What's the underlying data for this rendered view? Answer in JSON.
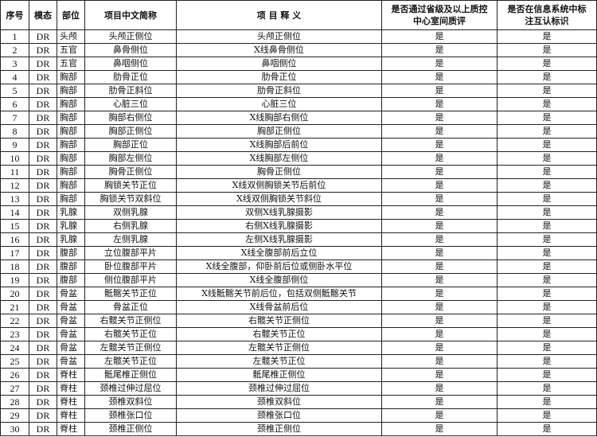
{
  "headers": [
    "序号",
    "模态",
    "部位",
    "项目中文简称",
    "项 目 释 义",
    "是否通过省级及以上质控中心室间质评",
    "是否在信息系统中标注互认标识"
  ],
  "rows": [
    [
      "1",
      "DR",
      "头颅",
      "头颅正侧位",
      "头颅正侧位",
      "是",
      "是"
    ],
    [
      "2",
      "DR",
      "五官",
      "鼻骨侧位",
      "X线鼻骨侧位",
      "是",
      "是"
    ],
    [
      "3",
      "DR",
      "五官",
      "鼻咽侧位",
      "鼻咽侧位",
      "是",
      "是"
    ],
    [
      "4",
      "DR",
      "胸部",
      "肋骨正位",
      "肋骨正位",
      "是",
      "是"
    ],
    [
      "5",
      "DR",
      "胸部",
      "肋骨正斜位",
      "肋骨正斜位",
      "是",
      "是"
    ],
    [
      "6",
      "DR",
      "胸部",
      "心脏三位",
      "心脏三位",
      "是",
      "是"
    ],
    [
      "7",
      "DR",
      "胸部",
      "胸部右侧位",
      "X线胸部右侧位",
      "是",
      "是"
    ],
    [
      "8",
      "DR",
      "胸部",
      "胸部正侧位",
      "胸部正侧位",
      "是",
      "是"
    ],
    [
      "9",
      "DR",
      "胸部",
      "胸部正位",
      "X线胸部后前位",
      "是",
      "是"
    ],
    [
      "10",
      "DR",
      "胸部",
      "胸部左侧位",
      "X线胸部左侧位",
      "是",
      "是"
    ],
    [
      "11",
      "DR",
      "胸部",
      "胸骨正侧位",
      "胸骨正侧位",
      "是",
      "是"
    ],
    [
      "12",
      "DR",
      "胸部",
      "胸锁关节正位",
      "X线双侧胸锁关节后前位",
      "是",
      "是"
    ],
    [
      "13",
      "DR",
      "胸部",
      "胸锁关节双斜位",
      "X线双侧胸锁关节斜位",
      "是",
      "是"
    ],
    [
      "14",
      "DR",
      "乳腺",
      "双侧乳腺",
      "双侧X线乳腺摄影",
      "是",
      "是"
    ],
    [
      "15",
      "DR",
      "乳腺",
      "右侧乳腺",
      "右侧X线乳腺摄影",
      "是",
      "是"
    ],
    [
      "16",
      "DR",
      "乳腺",
      "左侧乳腺",
      "左侧X线乳腺摄影",
      "是",
      "是"
    ],
    [
      "17",
      "DR",
      "腹部",
      "立位腹部平片",
      "X线全腹部前后立位",
      "是",
      "是"
    ],
    [
      "18",
      "DR",
      "腹部",
      "卧位腹部平片",
      "X线全腹部，仰卧前后位或侧卧水平位",
      "是",
      "是"
    ],
    [
      "19",
      "DR",
      "腹部",
      "侧位腹部平片",
      "X线全腹部侧位",
      "是",
      "是"
    ],
    [
      "20",
      "DR",
      "骨盆",
      "骶髂关节正位",
      "X线骶髂关节前后位，包括双侧骶髂关节",
      "是",
      "是"
    ],
    [
      "21",
      "DR",
      "骨盆",
      "骨盆正位",
      "X线骨盆前后位",
      "是",
      "是"
    ],
    [
      "22",
      "DR",
      "骨盆",
      "右髋关节正侧位",
      "右髋关节正侧位",
      "是",
      "是"
    ],
    [
      "23",
      "DR",
      "骨盆",
      "右髋关节正位",
      "右髋关节正位",
      "是",
      "是"
    ],
    [
      "24",
      "DR",
      "骨盆",
      "左髋关节正侧位",
      "左髋关节正侧位",
      "是",
      "是"
    ],
    [
      "25",
      "DR",
      "骨盆",
      "左髋关节正位",
      "左髋关节正位",
      "是",
      "是"
    ],
    [
      "26",
      "DR",
      "脊柱",
      "骶尾椎正侧位",
      "骶尾椎正侧位",
      "是",
      "是"
    ],
    [
      "27",
      "DR",
      "脊柱",
      "颈椎过伸过屈位",
      "颈椎过伸过屈位",
      "是",
      "是"
    ],
    [
      "28",
      "DR",
      "脊柱",
      "颈椎双斜位",
      "颈椎双斜位",
      "是",
      "是"
    ],
    [
      "29",
      "DR",
      "脊柱",
      "颈椎张口位",
      "颈椎张口位",
      "是",
      "是"
    ],
    [
      "30",
      "DR",
      "脊柱",
      "颈椎正侧位",
      "颈椎正侧位",
      "是",
      "是"
    ]
  ]
}
